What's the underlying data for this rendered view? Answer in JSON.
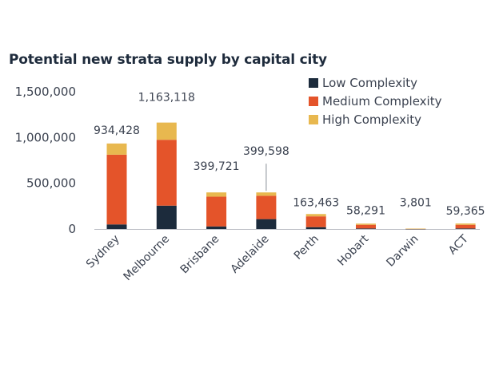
{
  "chart_data": {
    "type": "bar",
    "stacked": true,
    "title": "Potential new strata supply by capital city",
    "xlabel": "",
    "ylabel": "",
    "ylim": [
      0,
      1500000
    ],
    "y_ticks": [
      {
        "value": 0,
        "label": "0"
      },
      {
        "value": 500000,
        "label": "500,000"
      },
      {
        "value": 1000000,
        "label": "1,000,000"
      },
      {
        "value": 1500000,
        "label": "1,500,000"
      }
    ],
    "categories": [
      "Sydney",
      "Melbourne",
      "Brisbane",
      "Adelaide",
      "Perth",
      "Hobart",
      "Darwin",
      "ACT"
    ],
    "series": [
      {
        "name": "Low Complexity",
        "color": "#1c2b3c",
        "values": [
          50000,
          255000,
          28000,
          108000,
          20000,
          6000,
          500,
          6000
        ]
      },
      {
        "name": "Medium Complexity",
        "color": "#e4542a",
        "values": [
          762000,
          720000,
          325000,
          255000,
          118000,
          40000,
          2800,
          40000
        ]
      },
      {
        "name": "High Complexity",
        "color": "#e8b84f",
        "values": [
          122428,
          188118,
          46721,
          36598,
          25463,
          12291,
          501,
          13365
        ]
      }
    ],
    "totals": [
      "934,428",
      "1,163,118",
      "399,721",
      "399,598",
      "163,463",
      "58,291",
      "3,801",
      "59,365"
    ],
    "grid": false,
    "legend_position": "top-right"
  }
}
